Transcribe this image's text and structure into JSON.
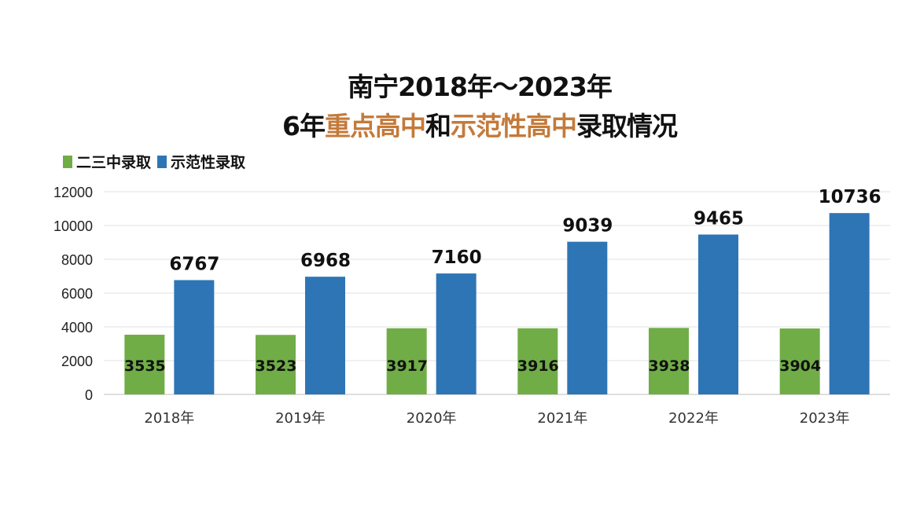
{
  "chart_data": {
    "type": "bar",
    "title_line1": "南宁2018年～2023年",
    "title_line2_parts": [
      "6年",
      "重点高中",
      "和",
      "示范性高中",
      "录取情况"
    ],
    "categories": [
      "2018年",
      "2019年",
      "2020年",
      "2021年",
      "2022年",
      "2023年"
    ],
    "series": [
      {
        "name": "二三中录取",
        "color": "#70ad47",
        "values": [
          3535,
          3523,
          3917,
          3916,
          3938,
          3904
        ]
      },
      {
        "name": "示范性录取",
        "color": "#2e75b6",
        "values": [
          6767,
          6968,
          7160,
          9039,
          9465,
          10736
        ]
      }
    ],
    "yticks": [
      0,
      2000,
      4000,
      6000,
      8000,
      10000,
      12000
    ],
    "ylim": [
      0,
      12000
    ],
    "grid": true,
    "legend": "top-left",
    "highlight_color": "#c47a3a"
  }
}
